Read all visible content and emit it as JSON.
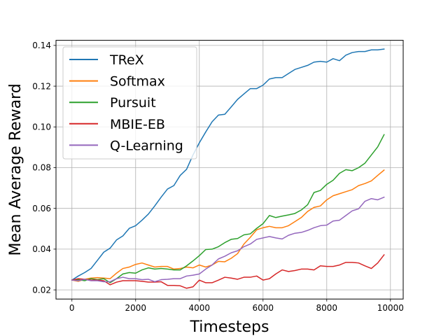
{
  "chart_data": {
    "type": "line",
    "title": "",
    "xlabel": "Timesteps",
    "ylabel": "Mean Average Reward",
    "xlim": [
      -500,
      10400
    ],
    "ylim": [
      0.0155,
      0.1425
    ],
    "xticks": [
      0,
      2000,
      4000,
      6000,
      8000,
      10000
    ],
    "yticks": [
      0.02,
      0.04,
      0.06,
      0.08,
      0.1,
      0.12,
      0.14
    ],
    "ytick_labels": [
      "0.02",
      "0.04",
      "0.06",
      "0.08",
      "0.10",
      "0.12",
      "0.14"
    ],
    "grid": true,
    "legend_position": "upper-left",
    "x": [
      0,
      200,
      400,
      600,
      800,
      1000,
      1200,
      1400,
      1600,
      1800,
      2000,
      2200,
      2400,
      2600,
      2800,
      3000,
      3200,
      3400,
      3600,
      3800,
      4000,
      4200,
      4400,
      4600,
      4800,
      5000,
      5200,
      5400,
      5600,
      5800,
      6000,
      6200,
      6400,
      6600,
      6800,
      7000,
      7200,
      7400,
      7600,
      7800,
      8000,
      8200,
      8400,
      8600,
      8800,
      9000,
      9200,
      9400,
      9600,
      9800
    ],
    "series": [
      {
        "name": "TReX",
        "color": "#1f77b4",
        "values": [
          0.0248,
          0.0268,
          0.0285,
          0.0305,
          0.0345,
          0.0385,
          0.0405,
          0.0445,
          0.0465,
          0.0502,
          0.0515,
          0.0542,
          0.0572,
          0.0612,
          0.0655,
          0.0695,
          0.0712,
          0.0762,
          0.0792,
          0.0862,
          0.0922,
          0.0975,
          0.1025,
          0.1058,
          0.1062,
          0.1098,
          0.1135,
          0.1162,
          0.1188,
          0.1188,
          0.1205,
          0.1235,
          0.1242,
          0.1242,
          0.1262,
          0.1282,
          0.1292,
          0.1302,
          0.1318,
          0.1322,
          0.1318,
          0.1335,
          0.1325,
          0.1352,
          0.1365,
          0.137,
          0.137,
          0.1378,
          0.1378,
          0.1382
        ]
      },
      {
        "name": "Softmax",
        "color": "#ff7f0e",
        "values": [
          0.0248,
          0.0242,
          0.0252,
          0.0258,
          0.026,
          0.0258,
          0.0255,
          0.0282,
          0.0305,
          0.0312,
          0.0325,
          0.0332,
          0.0322,
          0.0312,
          0.0315,
          0.0315,
          0.0302,
          0.0305,
          0.0312,
          0.0308,
          0.0322,
          0.0312,
          0.0322,
          0.034,
          0.0338,
          0.0355,
          0.0378,
          0.0425,
          0.0458,
          0.0495,
          0.0505,
          0.0512,
          0.0505,
          0.0505,
          0.0515,
          0.0535,
          0.0555,
          0.0585,
          0.0605,
          0.0612,
          0.0642,
          0.0662,
          0.0672,
          0.0682,
          0.0692,
          0.0712,
          0.0722,
          0.0735,
          0.0762,
          0.0788
        ]
      },
      {
        "name": "Pursuit",
        "color": "#2ca02c",
        "values": [
          0.0248,
          0.025,
          0.0245,
          0.0255,
          0.025,
          0.0255,
          0.0235,
          0.0255,
          0.0278,
          0.0285,
          0.0282,
          0.0298,
          0.0308,
          0.0302,
          0.0305,
          0.0302,
          0.0298,
          0.0298,
          0.0318,
          0.0342,
          0.0368,
          0.0398,
          0.04,
          0.0412,
          0.0432,
          0.0448,
          0.0452,
          0.047,
          0.0475,
          0.0502,
          0.0525,
          0.0565,
          0.0555,
          0.0562,
          0.0568,
          0.0575,
          0.0592,
          0.0618,
          0.0678,
          0.0688,
          0.0718,
          0.0738,
          0.0772,
          0.079,
          0.0785,
          0.08,
          0.0822,
          0.0862,
          0.0902,
          0.0962
        ]
      },
      {
        "name": "MBIE-EB",
        "color": "#d62728",
        "values": [
          0.0248,
          0.0255,
          0.0252,
          0.0248,
          0.0248,
          0.0245,
          0.0225,
          0.0238,
          0.0245,
          0.0245,
          0.0245,
          0.0242,
          0.0238,
          0.0238,
          0.024,
          0.0222,
          0.0222,
          0.022,
          0.0208,
          0.0215,
          0.0248,
          0.0235,
          0.0235,
          0.0248,
          0.0262,
          0.0258,
          0.0252,
          0.0262,
          0.0262,
          0.0268,
          0.0248,
          0.0255,
          0.0278,
          0.0298,
          0.029,
          0.0295,
          0.0302,
          0.0302,
          0.0298,
          0.0318,
          0.0315,
          0.0315,
          0.0322,
          0.0335,
          0.0335,
          0.0332,
          0.0318,
          0.0305,
          0.0332,
          0.0372
        ]
      },
      {
        "name": "Q-Learning",
        "color": "#9467bd",
        "values": [
          0.0248,
          0.0245,
          0.0252,
          0.0245,
          0.0245,
          0.024,
          0.024,
          0.0255,
          0.0262,
          0.0255,
          0.0255,
          0.025,
          0.0252,
          0.024,
          0.025,
          0.0252,
          0.0255,
          0.0255,
          0.0268,
          0.0272,
          0.0278,
          0.0302,
          0.0322,
          0.0352,
          0.0365,
          0.0382,
          0.0392,
          0.0412,
          0.0425,
          0.0448,
          0.0455,
          0.0462,
          0.0455,
          0.045,
          0.0468,
          0.0478,
          0.0482,
          0.0492,
          0.0505,
          0.0515,
          0.0518,
          0.0538,
          0.0542,
          0.0565,
          0.0588,
          0.0598,
          0.0635,
          0.0648,
          0.0642,
          0.0655
        ]
      }
    ]
  }
}
